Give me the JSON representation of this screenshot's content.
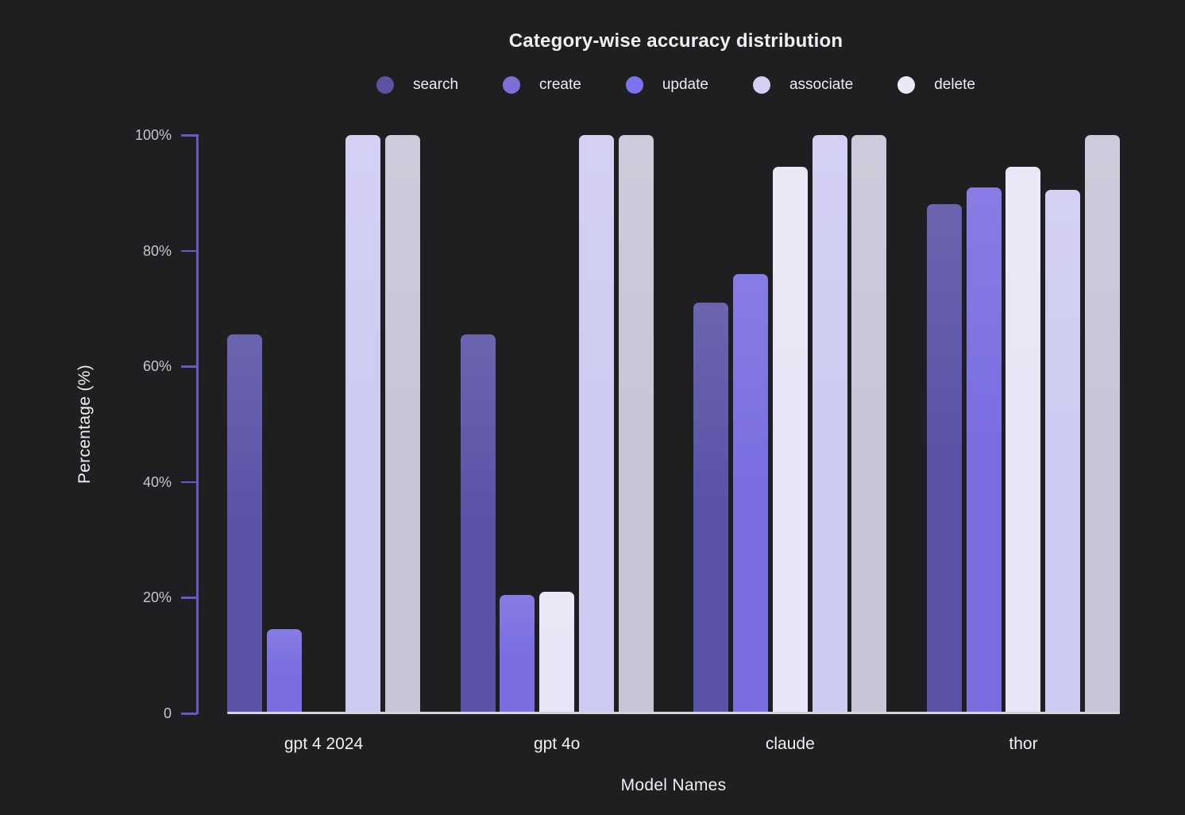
{
  "page": {
    "background": "#1f1e21"
  },
  "chart_data": {
    "type": "bar",
    "title": "Category-wise accuracy distribution",
    "xlabel": "Model Names",
    "ylabel": "Percentage (%)",
    "categories": [
      "gpt 4 2024",
      "gpt 4o",
      "claude",
      "thor"
    ],
    "series": [
      {
        "name": "search",
        "legend_color": "#5a52a3",
        "bar_color": "#5b53a7",
        "values": [
          65.5,
          65.5,
          71,
          88
        ]
      },
      {
        "name": "create",
        "legend_color": "#7a70d8",
        "bar_color": "#7a6ee1",
        "values": [
          14.5,
          20.5,
          76,
          91
        ]
      },
      {
        "name": "update",
        "legend_color": "#7c73ee",
        "bar_color": "#e8e6f6",
        "values": [
          0,
          21,
          94.5,
          94.5
        ]
      },
      {
        "name": "associate",
        "legend_color": "#d3d0f3",
        "bar_color": "#cecbf2",
        "values": [
          100,
          100,
          100,
          90.5
        ]
      },
      {
        "name": "delete",
        "legend_color": "#e9e7f8",
        "bar_color": "#c8c5d7",
        "values": [
          100,
          100,
          100,
          100
        ]
      }
    ],
    "ylim": [
      0,
      100
    ],
    "yticks": [
      {
        "value": 0,
        "label": "0"
      },
      {
        "value": 20,
        "label": "20%"
      },
      {
        "value": 40,
        "label": "40%"
      },
      {
        "value": 60,
        "label": "60%"
      },
      {
        "value": 80,
        "label": "80%"
      },
      {
        "value": 100,
        "label": "100%"
      }
    ],
    "grid": false,
    "legend_position": "top"
  },
  "colors": {
    "axis_line": "#6459c7",
    "baseline": "#d4d3de",
    "tick_label": "#c7c6cb",
    "text": "#f1f0f3"
  }
}
